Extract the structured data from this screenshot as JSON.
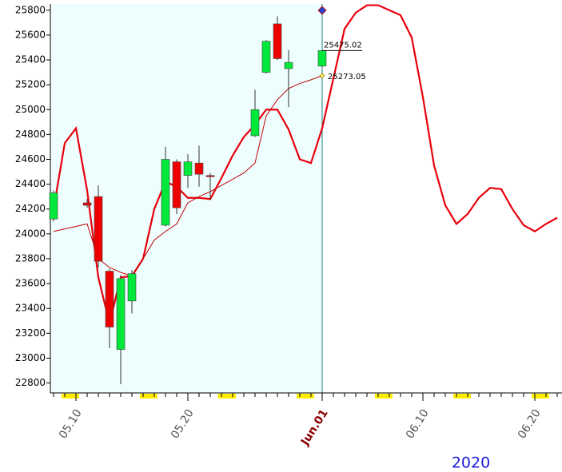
{
  "chart_data": {
    "type": "candlestick",
    "x": [
      "05.08",
      "05.09",
      "05.10",
      "05.11",
      "05.12",
      "05.13",
      "05.14",
      "05.15",
      "05.16",
      "05.17",
      "05.18",
      "05.19",
      "05.20",
      "05.21",
      "05.22",
      "05.23",
      "05.24",
      "05.25",
      "05.26",
      "05.27",
      "05.28",
      "05.29",
      "05.30",
      "05.31",
      "06.01",
      "06.02",
      "06.03",
      "06.04",
      "06.05",
      "06.06",
      "06.07",
      "06.08",
      "06.09",
      "06.10",
      "06.11",
      "06.12",
      "06.13",
      "06.14",
      "06.15",
      "06.16",
      "06.17",
      "06.18",
      "06.19",
      "06.20",
      "06.21",
      "06.22"
    ],
    "series": [
      {
        "color": "#e8000b",
        "values": [
          24200,
          24730,
          24850,
          24350,
          23650,
          23280,
          23650,
          23660,
          23800,
          24200,
          24420,
          24380,
          24290,
          24290,
          24280,
          24450,
          24630,
          24780,
          24880,
          25000,
          25000,
          24840,
          24600,
          24570,
          24850,
          25250,
          25650,
          25780,
          25840,
          25840,
          25800,
          25760,
          25580,
          25100,
          24550,
          24230,
          24080,
          24160,
          24290,
          24370,
          24360,
          24200,
          24070,
          24020,
          24080,
          24130
        ]
      },
      {
        "color": "#c00000",
        "values": [
          24020,
          24040,
          24060,
          24080,
          23800,
          23730,
          23690,
          23660,
          23800,
          23950,
          24020,
          24080,
          24250,
          24300,
          24340,
          24390,
          24440,
          24490,
          24570,
          24950,
          25080,
          25170,
          25210,
          25240,
          25273.05,
          null,
          null,
          null,
          null,
          null,
          null,
          null,
          null,
          null,
          null,
          null,
          null,
          null,
          null,
          null,
          null,
          null,
          null,
          null,
          null,
          null
        ]
      }
    ],
    "candles": {
      "x": [
        "05.08",
        "05.11",
        "05.12",
        "05.13",
        "05.14",
        "05.15",
        "05.18",
        "05.19",
        "05.20",
        "05.21",
        "05.22",
        "05.26",
        "05.27",
        "05.28",
        "05.29",
        "06.01"
      ],
      "open": [
        24120,
        24250,
        24300,
        23700,
        23070,
        23460,
        24070,
        24580,
        24470,
        24570,
        24470,
        24790,
        25300,
        25690,
        25330,
        25350
      ],
      "high": [
        24350,
        24280,
        24390,
        23720,
        23670,
        23710,
        24700,
        24600,
        24640,
        24710,
        24490,
        25160,
        25560,
        25750,
        25480,
        25480
      ],
      "low": [
        24100,
        24210,
        23730,
        23080,
        22790,
        23360,
        24060,
        24160,
        24370,
        24380,
        24280,
        24780,
        25290,
        25400,
        25020,
        25340
      ],
      "close": [
        24330,
        24230,
        23780,
        23250,
        23640,
        23680,
        24600,
        24210,
        24580,
        24480,
        24460,
        25000,
        25550,
        25410,
        25380,
        25475.02
      ],
      "up_color": "#00e83a",
      "down_color": "#ee0000"
    },
    "xlim": [
      "05.08",
      "06.22"
    ],
    "xticks": [
      "05.10",
      "05.20",
      {
        "value": "06.01",
        "label": "Jun.01"
      },
      "06.10",
      "06.20"
    ],
    "ylim": [
      22720,
      25850
    ],
    "yticks": [
      22800,
      23000,
      23200,
      23400,
      23600,
      23800,
      24000,
      24200,
      24400,
      24600,
      24800,
      25000,
      25200,
      25400,
      25600,
      25800
    ],
    "year_label": "2020"
  }
}
